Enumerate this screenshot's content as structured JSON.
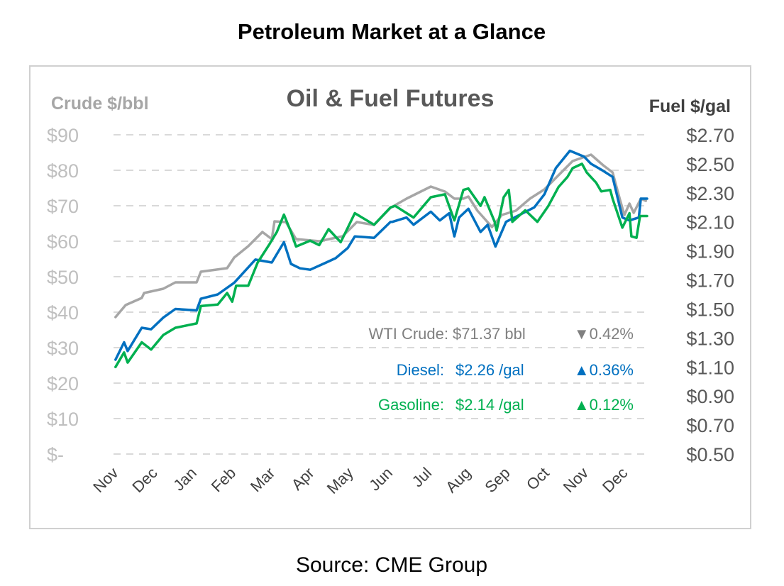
{
  "page_title": "Petroleum Market at a Glance",
  "source": "Source: CME Group",
  "chart_data": {
    "type": "line",
    "title": "Oil & Fuel Futures",
    "ylabel_left": "Crude $/bbl",
    "ylabel_right": "Fuel $/gal",
    "ylim_left": [
      0,
      90
    ],
    "ylim_right": [
      0.5,
      2.7
    ],
    "left_ticks": [
      "$-",
      "$10",
      "$20",
      "$30",
      "$40",
      "$50",
      "$60",
      "$70",
      "$80",
      "$90"
    ],
    "right_ticks": [
      "$0.50",
      "$0.70",
      "$0.90",
      "$1.10",
      "$1.30",
      "$1.50",
      "$1.70",
      "$1.90",
      "$2.10",
      "$2.30",
      "$2.50",
      "$2.70"
    ],
    "x_ticks": [
      "Nov",
      "Dec",
      "Jan",
      "Feb",
      "Mar",
      "Apr",
      "May",
      "Jun",
      "Jul",
      "Aug",
      "Sep",
      "Oct",
      "Nov",
      "Dec"
    ],
    "x_unit": "months since first Nov",
    "xlim": [
      0,
      13.62
    ],
    "grid": true,
    "series": [
      {
        "name": "WTI Crude",
        "axis": "left",
        "color": "#a6a6a6",
        "x": [
          0.05,
          0.31,
          0.72,
          0.78,
          1.27,
          1.58,
          2.12,
          2.23,
          2.9,
          3.08,
          3.44,
          3.8,
          4.04,
          4.11,
          4.4,
          4.66,
          5.25,
          5.85,
          6.21,
          6.65,
          7.07,
          7.48,
          8.1,
          8.46,
          8.7,
          8.93,
          9.06,
          9.29,
          9.66,
          9.91,
          10.27,
          10.63,
          11.0,
          11.36,
          11.72,
          12.19,
          12.5,
          12.74,
          12.92,
          13.04,
          13.17,
          13.28,
          13.46,
          13.59
        ],
        "values": [
          38.6,
          42,
          44,
          45.4,
          46.6,
          48.4,
          48.4,
          51.4,
          52.4,
          55.4,
          58.6,
          62.6,
          60.6,
          65.6,
          65.4,
          60.6,
          60,
          61.4,
          65.4,
          64.6,
          69.4,
          72,
          75.4,
          74,
          72,
          72,
          72.6,
          68.6,
          64,
          67.4,
          68.6,
          72,
          74.6,
          78.6,
          82.6,
          84.4,
          81.4,
          79.4,
          72,
          67.4,
          70.6,
          68,
          72,
          71.37
        ]
      },
      {
        "name": "Diesel",
        "axis": "right",
        "color": "#0070c0",
        "x": [
          0.05,
          0.27,
          0.36,
          0.72,
          0.96,
          1.27,
          1.58,
          2.12,
          2.23,
          2.66,
          3.08,
          3.62,
          4.04,
          4.35,
          4.53,
          4.76,
          5.02,
          5.43,
          5.67,
          5.98,
          6.16,
          6.65,
          7.07,
          7.12,
          7.48,
          7.66,
          8.1,
          8.33,
          8.57,
          8.7,
          8.82,
          9.06,
          9.37,
          9.55,
          9.75,
          10.02,
          10.38,
          10.74,
          11.0,
          11.29,
          11.65,
          12.01,
          12.19,
          12.45,
          12.74,
          12.99,
          13.17,
          13.41,
          13.46,
          13.62
        ],
        "values": [
          1.15,
          1.27,
          1.21,
          1.37,
          1.36,
          1.44,
          1.5,
          1.49,
          1.57,
          1.6,
          1.68,
          1.84,
          1.82,
          1.96,
          1.81,
          1.78,
          1.77,
          1.82,
          1.85,
          1.92,
          2.0,
          1.99,
          2.1,
          2.1,
          2.13,
          2.08,
          2.17,
          2.11,
          2.16,
          2.0,
          2.13,
          2.19,
          2.03,
          2.08,
          1.93,
          2.1,
          2.15,
          2.2,
          2.29,
          2.47,
          2.59,
          2.55,
          2.5,
          2.46,
          2.41,
          2.13,
          2.11,
          2.13,
          2.26,
          2.26
        ]
      },
      {
        "name": "Gasoline",
        "axis": "right",
        "color": "#00b050",
        "x": [
          0.05,
          0.27,
          0.36,
          0.72,
          0.96,
          1.27,
          1.58,
          2.12,
          2.23,
          2.66,
          2.9,
          3.03,
          3.13,
          3.44,
          3.68,
          3.99,
          4.17,
          4.35,
          4.53,
          4.66,
          5.02,
          5.25,
          5.49,
          5.8,
          5.98,
          6.16,
          6.65,
          7.07,
          7.19,
          7.66,
          8.1,
          8.46,
          8.7,
          8.93,
          9.06,
          9.24,
          9.37,
          9.47,
          9.73,
          9.78,
          9.96,
          10.09,
          10.18,
          10.51,
          10.82,
          11.1,
          11.36,
          11.59,
          11.72,
          11.96,
          12.08,
          12.32,
          12.45,
          12.68,
          12.74,
          12.99,
          13.17,
          13.22,
          13.35,
          13.44,
          13.62
        ],
        "values": [
          1.1,
          1.2,
          1.13,
          1.27,
          1.22,
          1.32,
          1.37,
          1.4,
          1.52,
          1.53,
          1.61,
          1.55,
          1.66,
          1.66,
          1.82,
          1.95,
          2.03,
          2.15,
          2.03,
          1.93,
          1.97,
          1.94,
          2.05,
          1.96,
          2.06,
          2.16,
          2.08,
          2.2,
          2.21,
          2.13,
          2.27,
          2.29,
          2.11,
          2.32,
          2.33,
          2.26,
          2.21,
          2.27,
          2.1,
          2.04,
          2.27,
          2.32,
          2.1,
          2.18,
          2.1,
          2.21,
          2.34,
          2.41,
          2.47,
          2.5,
          2.44,
          2.37,
          2.31,
          2.32,
          2.26,
          2.06,
          2.16,
          2.0,
          1.99,
          2.14,
          2.14
        ]
      }
    ],
    "legend": [
      {
        "label": "WTI Crude:",
        "value": "$71.37 bbl",
        "change": "▼0.42%",
        "color": "#808080"
      },
      {
        "label": "Diesel:",
        "value": "$2.26 /gal",
        "change": "▲0.36%",
        "color": "#0070c0"
      },
      {
        "label": "Gasoline:",
        "value": "$2.14 /gal",
        "change": "▲0.12%",
        "color": "#00b050"
      }
    ]
  }
}
